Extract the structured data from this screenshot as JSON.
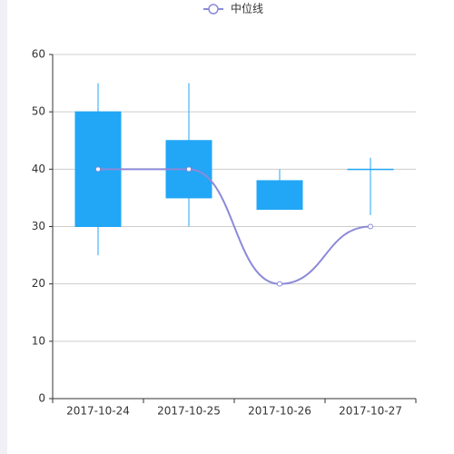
{
  "chart_data": {
    "type": "boxplot",
    "categories": [
      "2017-10-24",
      "2017-10-25",
      "2017-10-26",
      "2017-10-27"
    ],
    "box": {
      "color": "#22a6f6",
      "low": [
        25,
        30,
        33,
        32
      ],
      "q1": [
        30,
        35,
        33,
        40
      ],
      "q3": [
        50,
        45,
        38,
        40
      ],
      "high": [
        55,
        55,
        40,
        42
      ]
    },
    "series": [
      {
        "name": "中位线",
        "color": "#8c8ad8",
        "values": [
          40,
          40,
          20,
          30
        ]
      }
    ],
    "ylim": [
      0,
      60
    ],
    "yticks": [
      0,
      10,
      20,
      30,
      40,
      50,
      60
    ],
    "grid": true,
    "legend": "top",
    "smooth": true
  }
}
